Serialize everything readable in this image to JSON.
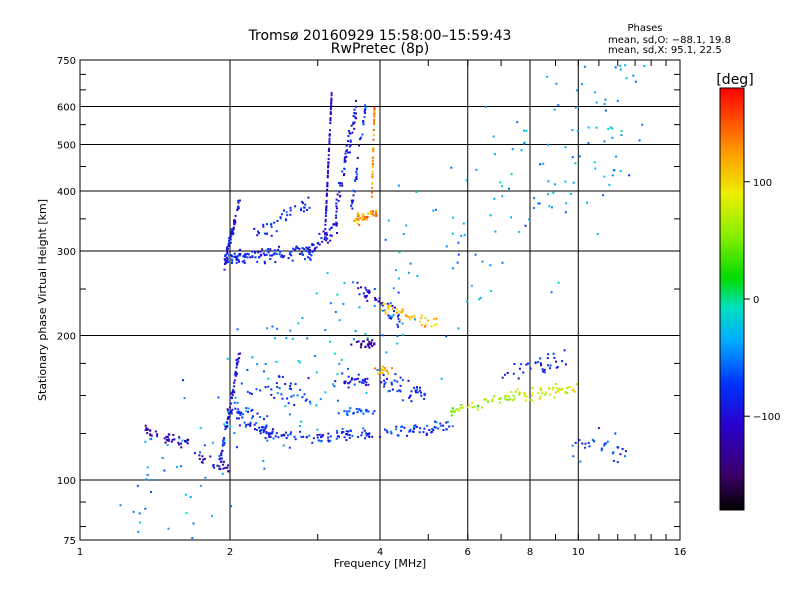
{
  "chart_data": {
    "type": "scatter",
    "title": "Tromsø 20160929 15:58:00–15:59:43",
    "subtitle": "RwPretec (8p)",
    "xlabel": "Frequency [MHz]",
    "ylabel": "Stationary phase Virtual Height [km]",
    "x_scale": "log",
    "y_scale": "log",
    "xlim": [
      1,
      16
    ],
    "ylim": [
      75,
      750
    ],
    "x_ticks": [
      1,
      2,
      4,
      6,
      8,
      10,
      16
    ],
    "x_tick_labels": [
      "1",
      "2",
      "4",
      "6",
      "8",
      "10",
      "16"
    ],
    "y_ticks": [
      75,
      100,
      200,
      300,
      400,
      500,
      600,
      750
    ],
    "y_tick_labels": [
      "75",
      "100",
      "200",
      "300",
      "400",
      "500",
      "600",
      "750"
    ],
    "grid": true,
    "stats_block": {
      "heading": "Phases",
      "line1": "mean, sd,O: −88.1, 19.8",
      "line2": "mean, sd,X:  95.1, 22.5"
    },
    "colorbar": {
      "label": "[deg]",
      "range": [
        -180,
        180
      ],
      "ticks": [
        100,
        0,
        -100
      ],
      "tick_labels": [
        "100",
        "0",
        "−100"
      ],
      "colormap": "rainbow"
    },
    "series": [
      {
        "x": 1.35,
        "y": 126,
        "x_end": 1.65,
        "y_end": 120,
        "phase": -120,
        "count": 40,
        "spread_y": 0.03
      },
      {
        "x": 1.7,
        "y": 112,
        "x_end": 2.0,
        "y_end": 105,
        "phase": -115,
        "count": 22,
        "spread_y": 0.03
      },
      {
        "x": 1.9,
        "y": 105,
        "x_end": 2.1,
        "y_end": 190,
        "phase": -95,
        "count": 70,
        "spread_y": 0.04
      },
      {
        "x": 2.0,
        "y": 140,
        "x_end": 2.4,
        "y_end": 128,
        "phase": -80,
        "count": 50,
        "spread_y": 0.06
      },
      {
        "x": 2.3,
        "y": 125,
        "x_end": 3.2,
        "y_end": 122,
        "phase": -85,
        "count": 55,
        "spread_y": 0.03
      },
      {
        "x": 3.2,
        "y": 125,
        "x_end": 3.9,
        "y_end": 124,
        "phase": -80,
        "count": 35,
        "spread_y": 0.03
      },
      {
        "x": 4.0,
        "y": 125,
        "x_end": 5.6,
        "y_end": 130,
        "phase": -70,
        "count": 55,
        "spread_y": 0.03
      },
      {
        "x": 2.1,
        "y": 160,
        "x_end": 2.9,
        "y_end": 150,
        "phase": -75,
        "count": 40,
        "spread_y": 0.08
      },
      {
        "x": 3.2,
        "y": 162,
        "x_end": 3.8,
        "y_end": 160,
        "phase": -90,
        "count": 30,
        "spread_y": 0.03
      },
      {
        "x": 3.3,
        "y": 140,
        "x_end": 3.9,
        "y_end": 138,
        "phase": -60,
        "count": 25,
        "spread_y": 0.03
      },
      {
        "x": 4.0,
        "y": 160,
        "x_end": 5.0,
        "y_end": 150,
        "phase": -85,
        "count": 40,
        "spread_y": 0.06
      },
      {
        "x": 3.5,
        "y": 193,
        "x_end": 3.9,
        "y_end": 192,
        "phase": -135,
        "count": 25,
        "spread_y": 0.02
      },
      {
        "x": 3.9,
        "y": 170,
        "x_end": 4.3,
        "y_end": 168,
        "phase": 120,
        "count": 15,
        "spread_y": 0.03
      },
      {
        "x": 3.6,
        "y": 255,
        "x_end": 4.4,
        "y_end": 215,
        "phase": -100,
        "count": 40,
        "spread_y": 0.04
      },
      {
        "x": 4.0,
        "y": 230,
        "x_end": 5.2,
        "y_end": 212,
        "phase": 110,
        "count": 40,
        "spread_y": 0.04
      },
      {
        "x": 5.5,
        "y": 140,
        "x_end": 7.5,
        "y_end": 150,
        "phase": 60,
        "count": 45,
        "spread_y": 0.03
      },
      {
        "x": 7.5,
        "y": 150,
        "x_end": 10.0,
        "y_end": 155,
        "phase": 80,
        "count": 50,
        "spread_y": 0.03
      },
      {
        "x": 7.0,
        "y": 165,
        "x_end": 9.5,
        "y_end": 180,
        "phase": -95,
        "count": 35,
        "spread_y": 0.05
      },
      {
        "x": 9.5,
        "y": 120,
        "x_end": 12.5,
        "y_end": 115,
        "phase": -70,
        "count": 30,
        "spread_y": 0.08
      },
      {
        "x": 1.95,
        "y": 290,
        "x_end": 2.9,
        "y_end": 300,
        "phase": -85,
        "count": 120,
        "spread_y": 0.035
      },
      {
        "x": 1.95,
        "y": 280,
        "x_end": 2.1,
        "y_end": 390,
        "phase": -100,
        "count": 60,
        "spread_y": 0.03
      },
      {
        "x": 2.2,
        "y": 320,
        "x_end": 2.9,
        "y_end": 380,
        "phase": -80,
        "count": 40,
        "spread_y": 0.05
      },
      {
        "x": 2.9,
        "y": 300,
        "x_end": 3.3,
        "y_end": 340,
        "phase": -95,
        "count": 40,
        "spread_y": 0.04
      },
      {
        "x": 3.1,
        "y": 320,
        "x_end": 3.2,
        "y_end": 640,
        "phase": -105,
        "count": 70,
        "spread_y": 0.01
      },
      {
        "x": 3.25,
        "y": 360,
        "x_end": 3.6,
        "y_end": 610,
        "phase": -95,
        "count": 60,
        "spread_y": 0.06
      },
      {
        "x": 3.5,
        "y": 360,
        "x_end": 3.75,
        "y_end": 620,
        "phase": -80,
        "count": 35,
        "spread_y": 0.05
      },
      {
        "x": 3.55,
        "y": 350,
        "x_end": 3.95,
        "y_end": 360,
        "phase": 130,
        "count": 45,
        "spread_y": 0.03
      },
      {
        "x": 3.85,
        "y": 380,
        "x_end": 3.9,
        "y_end": 600,
        "phase": 130,
        "count": 40,
        "spread_y": 0.02
      },
      {
        "x": 1.2,
        "y": 80,
        "x_end": 14.0,
        "y_end": 640,
        "phase": -40,
        "count": 280,
        "spread_y": 0.5
      }
    ]
  }
}
